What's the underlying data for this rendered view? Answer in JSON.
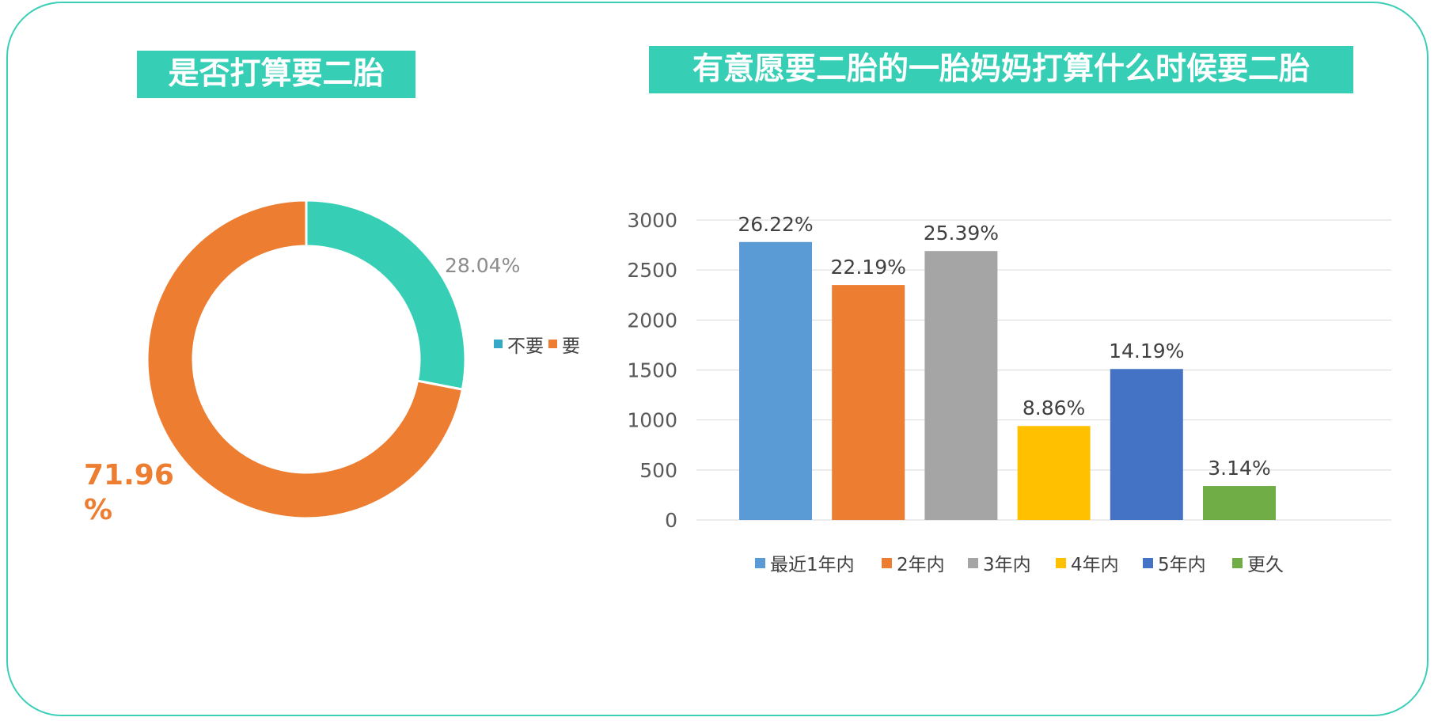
{
  "left_banner": "是否打算要二胎",
  "right_banner": "有意愿要二胎的一胎妈妈打算什么时候要二胎",
  "chart_data": [
    {
      "type": "pie",
      "title": "是否打算要二胎",
      "slices": [
        {
          "name": "不要",
          "value": 28.04,
          "label": "28.04%",
          "color": "#36cfb6"
        },
        {
          "name": "要",
          "value": 71.96,
          "label": "71.96%",
          "color": "#ed7d31"
        }
      ],
      "legend": [
        "不要",
        "要"
      ],
      "legend_colors": [
        "#36a9c6",
        "#ed7d31"
      ],
      "legend_position": "right"
    },
    {
      "type": "bar",
      "title": "有意愿要二胎的一胎妈妈打算什么时候要二胎",
      "categories": [
        "最近1年内",
        "2年内",
        "3年内",
        "4年内",
        "5年内",
        "更久"
      ],
      "values": [
        2780,
        2350,
        2690,
        940,
        1510,
        340
      ],
      "data_labels": [
        "26.22%",
        "22.19%",
        "25.39%",
        "8.86%",
        "14.19%",
        "3.14%"
      ],
      "colors": [
        "#5b9bd5",
        "#ed7d31",
        "#a5a5a5",
        "#ffc000",
        "#4472c4",
        "#70ad47"
      ],
      "yticks": [
        0,
        500,
        1000,
        1500,
        2000,
        2500,
        3000
      ],
      "ylim": [
        0,
        3000
      ],
      "grid": true,
      "legend_position": "bottom"
    }
  ]
}
